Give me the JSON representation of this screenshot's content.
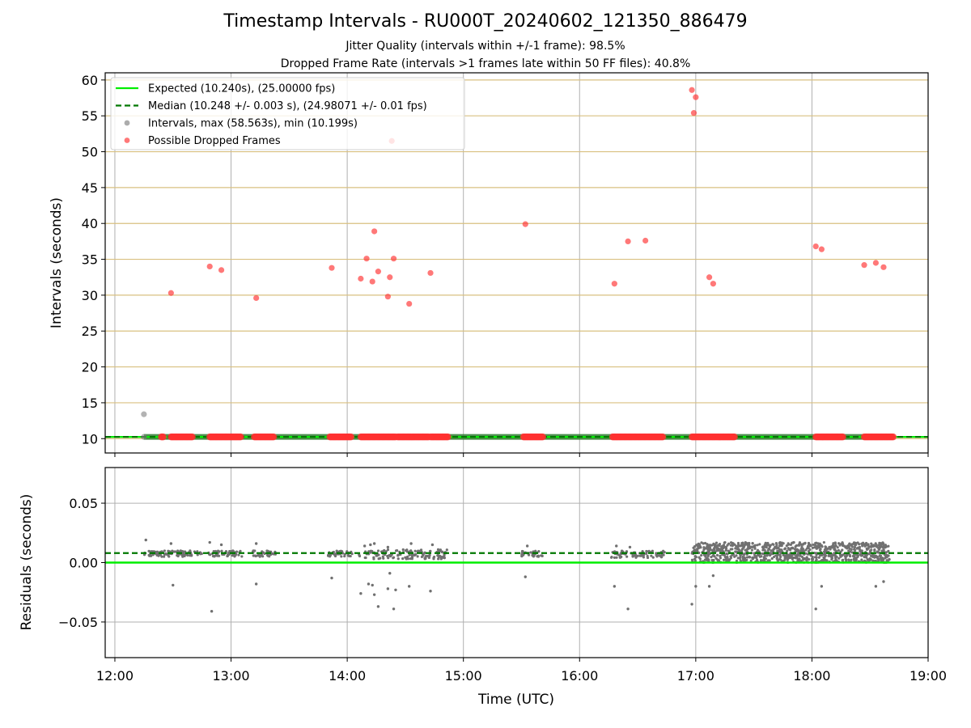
{
  "title": "Timestamp Intervals - RU000T_20240602_121350_886479",
  "subtitle_1": "Jitter Quality (intervals within +/-1 frame): 98.5%",
  "subtitle_2": "Dropped Frame Rate (intervals >1 frames late within 50 FF files): 40.8%",
  "colors": {
    "expected": "#00ee00",
    "median": "#007700",
    "intervals": "#808080",
    "dropped": "#ff3030",
    "hgrid_top": "#d9c080",
    "grid": "#b0b0b0",
    "band": "#2e7d32"
  },
  "chart_data": [
    {
      "type": "scatter",
      "panel": "top",
      "xlabel": "",
      "ylabel": "Intervals (seconds)",
      "xlim": [
        "11:55",
        "19:00"
      ],
      "ylim": [
        8,
        61
      ],
      "yticks": [
        10,
        15,
        20,
        25,
        30,
        35,
        40,
        45,
        50,
        55,
        60
      ],
      "grid": true,
      "legend_position": "top-left",
      "legend": [
        {
          "label": "Expected (10.240s), (25.00000 fps)",
          "kind": "line",
          "color_key": "expected"
        },
        {
          "label": "Median (10.248 +/- 0.003 s), (24.98071 +/- 0.01 fps)",
          "kind": "dashed",
          "color_key": "median"
        },
        {
          "label": "Intervals, max (58.563s), min (10.199s)",
          "kind": "marker",
          "color_key": "intervals"
        },
        {
          "label": "Possible Dropped Frames",
          "kind": "marker",
          "color_key": "dropped"
        }
      ],
      "expected_interval": 10.24,
      "median_interval": 10.248,
      "interval_points": [
        {
          "x": "12:15",
          "y": 13.4
        },
        {
          "x": "12:15",
          "y": 10.24
        }
      ],
      "interval_band_x": [
        "12:15",
        "18:40"
      ],
      "dropped_frame_points": [
        {
          "x": "12:29",
          "y": 30.3
        },
        {
          "x": "12:49",
          "y": 34.0
        },
        {
          "x": "12:55",
          "y": 33.5
        },
        {
          "x": "13:13",
          "y": 29.6
        },
        {
          "x": "13:52",
          "y": 33.8
        },
        {
          "x": "14:07",
          "y": 32.3
        },
        {
          "x": "14:10",
          "y": 35.1
        },
        {
          "x": "14:13",
          "y": 31.9
        },
        {
          "x": "14:14",
          "y": 38.9
        },
        {
          "x": "14:16",
          "y": 33.3
        },
        {
          "x": "14:21",
          "y": 29.8
        },
        {
          "x": "14:22",
          "y": 32.5
        },
        {
          "x": "14:23",
          "y": 51.5
        },
        {
          "x": "14:24",
          "y": 35.1
        },
        {
          "x": "14:32",
          "y": 28.8
        },
        {
          "x": "14:43",
          "y": 33.1
        },
        {
          "x": "15:32",
          "y": 39.9
        },
        {
          "x": "16:18",
          "y": 31.6
        },
        {
          "x": "16:25",
          "y": 37.5
        },
        {
          "x": "16:34",
          "y": 37.6
        },
        {
          "x": "16:58",
          "y": 58.6
        },
        {
          "x": "16:59",
          "y": 55.4
        },
        {
          "x": "17:00",
          "y": 57.6
        },
        {
          "x": "17:07",
          "y": 32.5
        },
        {
          "x": "17:09",
          "y": 31.6
        },
        {
          "x": "18:02",
          "y": 36.8
        },
        {
          "x": "18:05",
          "y": 36.4
        },
        {
          "x": "18:27",
          "y": 34.2
        },
        {
          "x": "18:33",
          "y": 34.5
        },
        {
          "x": "18:37",
          "y": 33.9
        }
      ],
      "dropped_frame_runs_at_y": 10.24,
      "dropped_frame_runs": [
        [
          "12:24",
          "12:25"
        ],
        [
          "12:29",
          "12:40"
        ],
        [
          "12:49",
          "13:05"
        ],
        [
          "13:12",
          "13:22"
        ],
        [
          "13:51",
          "14:02"
        ],
        [
          "14:07",
          "14:25"
        ],
        [
          "14:26",
          "14:42"
        ],
        [
          "14:43",
          "14:52"
        ],
        [
          "15:31",
          "15:41"
        ],
        [
          "16:17",
          "16:43"
        ],
        [
          "16:58",
          "17:20"
        ],
        [
          "18:02",
          "18:16"
        ],
        [
          "18:27",
          "18:42"
        ]
      ]
    },
    {
      "type": "scatter",
      "panel": "bottom",
      "xlabel": "Time (UTC)",
      "ylabel": "Residuals (seconds)",
      "xticks": [
        "12:00",
        "13:00",
        "14:00",
        "15:00",
        "16:00",
        "17:00",
        "18:00",
        "19:00"
      ],
      "xlim": [
        "11:55",
        "19:00"
      ],
      "ylim": [
        -0.08,
        0.08
      ],
      "yticks": [
        -0.05,
        0.0,
        0.05
      ],
      "ytick_labels": [
        "−0.05",
        "0.00",
        "0.05"
      ],
      "grid": true,
      "expected_residual": 0.0,
      "median_residual": 0.008,
      "outlier_points": [
        {
          "x": "12:16",
          "y": 0.019
        },
        {
          "x": "12:29",
          "y": 0.016
        },
        {
          "x": "12:49",
          "y": 0.017
        },
        {
          "x": "12:55",
          "y": 0.015
        },
        {
          "x": "13:13",
          "y": 0.016
        },
        {
          "x": "14:09",
          "y": 0.014
        },
        {
          "x": "14:12",
          "y": 0.015
        },
        {
          "x": "14:14",
          "y": 0.016
        },
        {
          "x": "14:21",
          "y": 0.013
        },
        {
          "x": "14:33",
          "y": 0.016
        },
        {
          "x": "14:44",
          "y": 0.015
        },
        {
          "x": "15:33",
          "y": 0.014
        },
        {
          "x": "16:19",
          "y": 0.014
        },
        {
          "x": "16:26",
          "y": 0.013
        },
        {
          "x": "12:30",
          "y": -0.019
        },
        {
          "x": "12:50",
          "y": -0.041
        },
        {
          "x": "13:13",
          "y": -0.018
        },
        {
          "x": "13:52",
          "y": -0.013
        },
        {
          "x": "14:07",
          "y": -0.026
        },
        {
          "x": "14:11",
          "y": -0.018
        },
        {
          "x": "14:13",
          "y": -0.019
        },
        {
          "x": "14:14",
          "y": -0.027
        },
        {
          "x": "14:16",
          "y": -0.037
        },
        {
          "x": "14:21",
          "y": -0.022
        },
        {
          "x": "14:22",
          "y": -0.009
        },
        {
          "x": "14:24",
          "y": -0.039
        },
        {
          "x": "14:25",
          "y": -0.023
        },
        {
          "x": "14:32",
          "y": -0.02
        },
        {
          "x": "14:43",
          "y": -0.024
        },
        {
          "x": "15:32",
          "y": -0.012
        },
        {
          "x": "16:18",
          "y": -0.02
        },
        {
          "x": "16:25",
          "y": -0.039
        },
        {
          "x": "16:58",
          "y": -0.035
        },
        {
          "x": "17:00",
          "y": -0.02
        },
        {
          "x": "17:07",
          "y": -0.02
        },
        {
          "x": "17:09",
          "y": -0.011
        },
        {
          "x": "18:02",
          "y": -0.039
        },
        {
          "x": "18:05",
          "y": -0.02
        },
        {
          "x": "18:33",
          "y": -0.02
        },
        {
          "x": "18:37",
          "y": -0.016
        }
      ],
      "residual_clusters": [
        {
          "x": [
            "12:15",
            "12:45"
          ],
          "y": [
            0.005,
            0.01
          ]
        },
        {
          "x": [
            "12:48",
            "13:06"
          ],
          "y": [
            0.005,
            0.01
          ]
        },
        {
          "x": [
            "13:11",
            "13:23"
          ],
          "y": [
            0.005,
            0.01
          ]
        },
        {
          "x": [
            "13:50",
            "14:03"
          ],
          "y": [
            0.005,
            0.01
          ]
        },
        {
          "x": [
            "14:06",
            "14:52"
          ],
          "y": [
            0.003,
            0.011
          ]
        },
        {
          "x": [
            "15:30",
            "15:42"
          ],
          "y": [
            0.005,
            0.01
          ]
        },
        {
          "x": [
            "16:16",
            "16:44"
          ],
          "y": [
            0.004,
            0.01
          ]
        },
        {
          "x": [
            "16:58",
            "18:40"
          ],
          "y": [
            0.0,
            0.017
          ]
        }
      ]
    }
  ]
}
